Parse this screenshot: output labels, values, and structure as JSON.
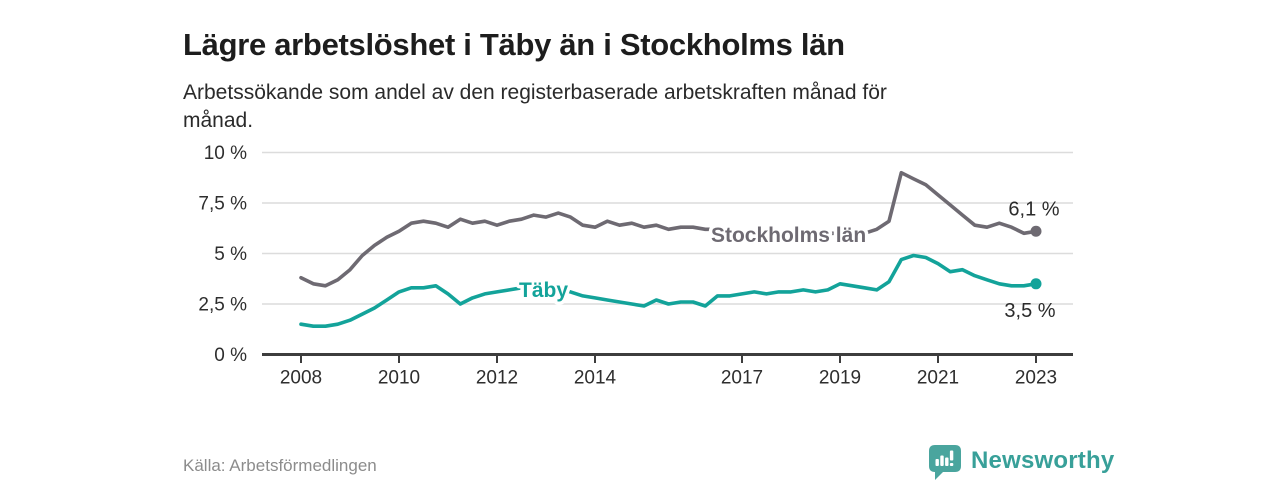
{
  "header": {
    "title": "Lägre arbetslöshet i Täby än i Stockholms län",
    "subtitle": "Arbetssökande som andel av den registerbaserade arbetskraften månad för månad."
  },
  "footer": {
    "source": "Källa: Arbetsförmedlingen",
    "brand": "Newsworthy",
    "brand_color": "#38a099",
    "brand_icon": "speech-bubble-bar-chart",
    "brand_icon_color": "#4aa59e"
  },
  "colors": {
    "stockholm_line": "#6e6a72",
    "taby_line": "#13a39a",
    "gridline": "#dcdcdc",
    "axis": "#3d3d3d",
    "tick_text": "#2e2e2e",
    "end_label_text": "#2b2b2b"
  },
  "chart_data": {
    "type": "line",
    "title": "Lägre arbetslöshet i Täby än i Stockholms län",
    "subtitle": "Arbetssökande som andel av den registerbaserade arbetskraften månad för månad.",
    "source": "Källa: Arbetsförmedlingen",
    "unit": "%",
    "grid": "horizontal",
    "legend": "inline-labels",
    "ylim": [
      0,
      10
    ],
    "xlim_years": [
      2007.2,
      2023.8
    ],
    "y_axis": {
      "ticks": [
        {
          "label": "10 %",
          "value": 10
        },
        {
          "label": "7,5 %",
          "value": 7.5
        },
        {
          "label": "5 %",
          "value": 5
        },
        {
          "label": "2,5 %",
          "value": 2.5
        },
        {
          "label": "0 %",
          "value": 0
        }
      ]
    },
    "x_axis": {
      "ticks": [
        {
          "label": "2008",
          "year": 2008
        },
        {
          "label": "2010",
          "year": 2010
        },
        {
          "label": "2012",
          "year": 2012
        },
        {
          "label": "2014",
          "year": 2014
        },
        {
          "label": "2017",
          "year": 2017
        },
        {
          "label": "2019",
          "year": 2019
        },
        {
          "label": "2021",
          "year": 2021
        },
        {
          "label": "2023",
          "year": 2023
        }
      ]
    },
    "series": [
      {
        "name": "Stockholms län",
        "color": "#6e6a72",
        "end_label": "6,1 %",
        "end_label_offset": [
          -2,
          -16
        ],
        "inline_label": {
          "text": "Stockholms län",
          "x": 2017.95,
          "y": 5.92
        },
        "points": [
          [
            2008.0,
            3.8
          ],
          [
            2008.25,
            3.5
          ],
          [
            2008.5,
            3.4
          ],
          [
            2008.75,
            3.7
          ],
          [
            2009.0,
            4.2
          ],
          [
            2009.25,
            4.9
          ],
          [
            2009.5,
            5.4
          ],
          [
            2009.75,
            5.8
          ],
          [
            2010.0,
            6.1
          ],
          [
            2010.25,
            6.5
          ],
          [
            2010.5,
            6.6
          ],
          [
            2010.75,
            6.5
          ],
          [
            2011.0,
            6.3
          ],
          [
            2011.25,
            6.7
          ],
          [
            2011.5,
            6.5
          ],
          [
            2011.75,
            6.6
          ],
          [
            2012.0,
            6.4
          ],
          [
            2012.25,
            6.6
          ],
          [
            2012.5,
            6.7
          ],
          [
            2012.75,
            6.9
          ],
          [
            2013.0,
            6.8
          ],
          [
            2013.25,
            7.0
          ],
          [
            2013.5,
            6.8
          ],
          [
            2013.75,
            6.4
          ],
          [
            2014.0,
            6.3
          ],
          [
            2014.25,
            6.6
          ],
          [
            2014.5,
            6.4
          ],
          [
            2014.75,
            6.5
          ],
          [
            2015.0,
            6.3
          ],
          [
            2015.25,
            6.4
          ],
          [
            2015.5,
            6.2
          ],
          [
            2015.75,
            6.3
          ],
          [
            2016.0,
            6.3
          ],
          [
            2016.25,
            6.2
          ],
          [
            2016.5,
            6.2
          ],
          [
            2016.75,
            6.1
          ],
          [
            2017.0,
            6.1
          ],
          [
            2017.25,
            6.0
          ],
          [
            2017.5,
            6.0
          ],
          [
            2017.75,
            6.0
          ],
          [
            2018.0,
            6.0
          ],
          [
            2018.25,
            6.0
          ],
          [
            2018.5,
            6.0
          ],
          [
            2018.75,
            6.0
          ],
          [
            2019.0,
            6.0
          ],
          [
            2019.25,
            6.0
          ],
          [
            2019.5,
            6.0
          ],
          [
            2019.75,
            6.2
          ],
          [
            2020.0,
            6.6
          ],
          [
            2020.25,
            9.0
          ],
          [
            2020.5,
            8.7
          ],
          [
            2020.75,
            8.4
          ],
          [
            2021.0,
            7.9
          ],
          [
            2021.25,
            7.4
          ],
          [
            2021.5,
            6.9
          ],
          [
            2021.75,
            6.4
          ],
          [
            2022.0,
            6.3
          ],
          [
            2022.25,
            6.5
          ],
          [
            2022.5,
            6.3
          ],
          [
            2022.75,
            6.0
          ],
          [
            2023.0,
            6.1
          ]
        ]
      },
      {
        "name": "Täby",
        "color": "#13a39a",
        "end_label": "3,5 %",
        "end_label_offset": [
          -6,
          33
        ],
        "inline_label": {
          "text": "Täby",
          "x": 2012.95,
          "y": 3.19
        },
        "points": [
          [
            2008.0,
            1.5
          ],
          [
            2008.25,
            1.4
          ],
          [
            2008.5,
            1.4
          ],
          [
            2008.75,
            1.5
          ],
          [
            2009.0,
            1.7
          ],
          [
            2009.25,
            2.0
          ],
          [
            2009.5,
            2.3
          ],
          [
            2009.75,
            2.7
          ],
          [
            2010.0,
            3.1
          ],
          [
            2010.25,
            3.3
          ],
          [
            2010.5,
            3.3
          ],
          [
            2010.75,
            3.4
          ],
          [
            2011.0,
            3.0
          ],
          [
            2011.25,
            2.5
          ],
          [
            2011.5,
            2.8
          ],
          [
            2011.75,
            3.0
          ],
          [
            2012.0,
            3.1
          ],
          [
            2012.25,
            3.2
          ],
          [
            2012.5,
            3.3
          ],
          [
            2012.75,
            3.4
          ],
          [
            2013.0,
            3.3
          ],
          [
            2013.25,
            3.2
          ],
          [
            2013.5,
            3.1
          ],
          [
            2013.75,
            2.9
          ],
          [
            2014.0,
            2.8
          ],
          [
            2014.25,
            2.7
          ],
          [
            2014.5,
            2.6
          ],
          [
            2014.75,
            2.5
          ],
          [
            2015.0,
            2.4
          ],
          [
            2015.25,
            2.7
          ],
          [
            2015.5,
            2.5
          ],
          [
            2015.75,
            2.6
          ],
          [
            2016.0,
            2.6
          ],
          [
            2016.25,
            2.4
          ],
          [
            2016.5,
            2.9
          ],
          [
            2016.75,
            2.9
          ],
          [
            2017.0,
            3.0
          ],
          [
            2017.25,
            3.1
          ],
          [
            2017.5,
            3.0
          ],
          [
            2017.75,
            3.1
          ],
          [
            2018.0,
            3.1
          ],
          [
            2018.25,
            3.2
          ],
          [
            2018.5,
            3.1
          ],
          [
            2018.75,
            3.2
          ],
          [
            2019.0,
            3.5
          ],
          [
            2019.25,
            3.4
          ],
          [
            2019.5,
            3.3
          ],
          [
            2019.75,
            3.2
          ],
          [
            2020.0,
            3.6
          ],
          [
            2020.25,
            4.7
          ],
          [
            2020.5,
            4.9
          ],
          [
            2020.75,
            4.8
          ],
          [
            2021.0,
            4.5
          ],
          [
            2021.25,
            4.1
          ],
          [
            2021.5,
            4.2
          ],
          [
            2021.75,
            3.9
          ],
          [
            2022.0,
            3.7
          ],
          [
            2022.25,
            3.5
          ],
          [
            2022.5,
            3.4
          ],
          [
            2022.75,
            3.4
          ],
          [
            2023.0,
            3.5
          ]
        ]
      }
    ]
  }
}
